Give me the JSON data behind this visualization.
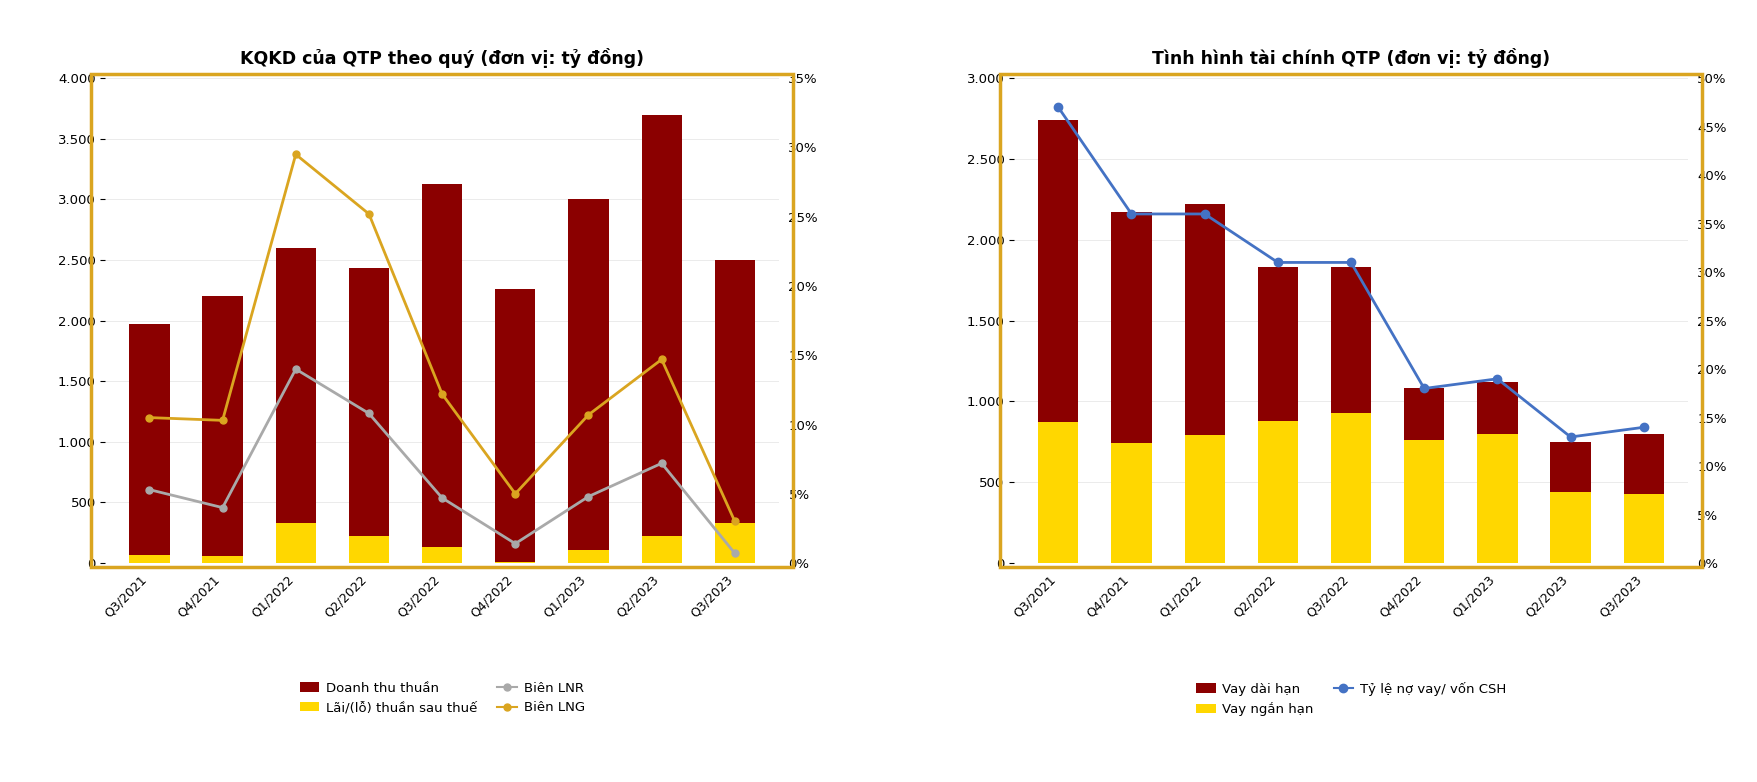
{
  "chart1": {
    "title": "KQKD của QTP theo quý (đơn vị: tỷ đồng)",
    "categories": [
      "Q3/2021",
      "Q4/2021",
      "Q1/2022",
      "Q2/2022",
      "Q3/2022",
      "Q4/2022",
      "Q1/2023",
      "Q2/2023",
      "Q3/2023"
    ],
    "doanh_thu": [
      1970,
      2200,
      2600,
      2430,
      3130,
      2260,
      3000,
      3700,
      2500
    ],
    "lai_lo": [
      70,
      60,
      330,
      220,
      130,
      10,
      110,
      220,
      330
    ],
    "bien_lnr_pct": [
      0.053,
      0.04,
      0.14,
      0.108,
      0.047,
      0.014,
      0.048,
      0.072,
      0.007
    ],
    "bien_lng_pct": [
      0.105,
      0.103,
      0.295,
      0.252,
      0.122,
      0.05,
      0.107,
      0.147,
      0.03
    ],
    "bar_color_doanh_thu": "#8B0000",
    "bar_color_lai_lo": "#FFD700",
    "line_color_lnr": "#A9A9A9",
    "line_color_lng": "#DAA520",
    "ylim_left": [
      0,
      4000
    ],
    "ylim_right": [
      0,
      0.35
    ],
    "yticks_left": [
      0,
      500,
      1000,
      1500,
      2000,
      2500,
      3000,
      3500,
      4000
    ],
    "yticks_right": [
      0,
      0.05,
      0.1,
      0.15,
      0.2,
      0.25,
      0.3,
      0.35
    ]
  },
  "chart2": {
    "title": "Tình hình tài chính QTP (đơn vị: tỷ đồng)",
    "categories": [
      "Q3/2021",
      "Q4/2021",
      "Q1/2022",
      "Q2/2022",
      "Q3/2022",
      "Q4/2022",
      "Q1/2023",
      "Q2/2023",
      "Q3/2023"
    ],
    "vay_dai_han": [
      1870,
      1430,
      1430,
      950,
      900,
      320,
      320,
      310,
      370
    ],
    "vay_ngan_han": [
      870,
      740,
      790,
      880,
      930,
      760,
      800,
      440,
      430
    ],
    "ty_le_no_vay": [
      0.47,
      0.36,
      0.36,
      0.31,
      0.31,
      0.18,
      0.19,
      0.13,
      0.14
    ],
    "bar_color_dai_han": "#8B0000",
    "bar_color_ngan_han": "#FFD700",
    "line_color": "#4472C4",
    "ylim_left": [
      0,
      3000
    ],
    "ylim_right": [
      0,
      0.5
    ],
    "yticks_left": [
      0,
      500,
      1000,
      1500,
      2000,
      2500,
      3000
    ],
    "yticks_right": [
      0,
      0.05,
      0.1,
      0.15,
      0.2,
      0.25,
      0.3,
      0.35,
      0.4,
      0.45,
      0.5
    ]
  },
  "legend1": {
    "doanh_thu_label": "Doanh thu thuần",
    "lai_lo_label": "Lãi/(lỗ) thuần sau thuế",
    "bien_lnr_label": "Biên LNR",
    "bien_lng_label": "Biên LNG"
  },
  "legend2": {
    "dai_han_label": "Vay dài hạn",
    "ngan_han_label": "Vay ngắn hạn",
    "ty_le_label": "Tỷ lệ nợ vay/ vốn CSH"
  },
  "fig_bg": "#FFFFFF",
  "border_color": "#DAA520",
  "bar_width": 0.55
}
